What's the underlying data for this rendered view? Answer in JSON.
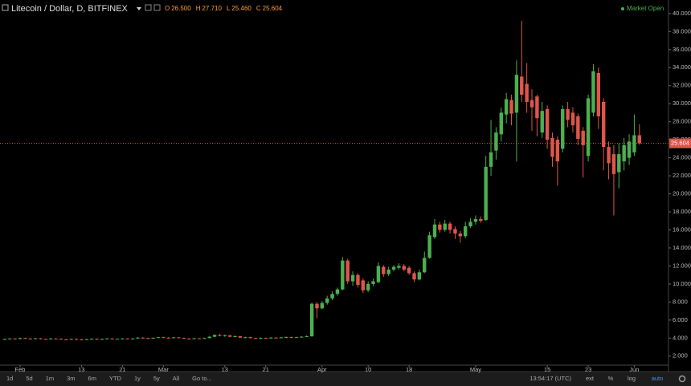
{
  "chart_data": {
    "type": "candlestick",
    "title": "Litecoin / Dollar, D, BITFINEX",
    "ohlc": [
      {
        "key": "O",
        "value": 26.5,
        "label": "26.500"
      },
      {
        "key": "H",
        "value": 27.71,
        "label": "27.710"
      },
      {
        "key": "L",
        "value": 25.46,
        "label": "25.460"
      },
      {
        "key": "C",
        "value": 25.604,
        "label": "25.604"
      }
    ],
    "status": "Market Open",
    "last_price": {
      "value": 25.604,
      "label": "25.604"
    },
    "up_color": "#4caf50",
    "down_color": "#e0554a",
    "categories": [
      null,
      null,
      null,
      "Feb",
      null,
      null,
      null,
      null,
      null,
      null,
      null,
      null,
      null,
      null,
      null,
      "13",
      null,
      null,
      null,
      null,
      null,
      null,
      null,
      "21",
      null,
      null,
      null,
      null,
      null,
      null,
      null,
      "Mar",
      null,
      null,
      null,
      null,
      null,
      null,
      null,
      null,
      null,
      null,
      null,
      "13",
      null,
      null,
      null,
      null,
      null,
      null,
      null,
      "21",
      null,
      null,
      null,
      null,
      null,
      null,
      null,
      null,
      null,
      null,
      "Apr",
      null,
      null,
      null,
      null,
      null,
      null,
      null,
      null,
      "10",
      null,
      null,
      null,
      null,
      null,
      null,
      null,
      "18",
      null,
      null,
      null,
      null,
      null,
      null,
      null,
      null,
      null,
      null,
      null,
      null,
      "May",
      null,
      null,
      null,
      null,
      null,
      null,
      null,
      null,
      null,
      null,
      null,
      null,
      null,
      "15",
      null,
      null,
      null,
      null,
      null,
      null,
      null,
      "23",
      null,
      null,
      null,
      null,
      null,
      null,
      null,
      null,
      "Jun",
      null
    ],
    "open": [
      3.85,
      3.9,
      3.95,
      3.9,
      4.0,
      3.95,
      3.92,
      3.98,
      3.9,
      3.88,
      3.95,
      3.92,
      3.85,
      3.82,
      3.9,
      3.85,
      3.8,
      3.88,
      3.92,
      3.85,
      3.9,
      3.95,
      3.88,
      3.92,
      3.95,
      3.9,
      3.95,
      4.05,
      4.0,
      3.95,
      4.02,
      4.1,
      4.05,
      4.0,
      4.08,
      4.02,
      3.95,
      3.9,
      3.98,
      3.92,
      4.0,
      4.15,
      4.35,
      4.25,
      4.3,
      4.15,
      4.2,
      4.05,
      4.1,
      4.0,
      3.95,
      4.02,
      3.98,
      4.05,
      4.0,
      4.08,
      4.12,
      4.05,
      4.1,
      4.15,
      4.2,
      7.8,
      7.3,
      7.9,
      8.4,
      8.9,
      9.4,
      12.6,
      10.3,
      11.0,
      10.4,
      9.3,
      10.0,
      10.2,
      11.9,
      11.1,
      11.6,
      11.8,
      12.0,
      11.8,
      11.2,
      10.5,
      11.3,
      12.9,
      15.2,
      16.6,
      16.0,
      16.7,
      16.1,
      15.6,
      15.3,
      16.4,
      16.9,
      17.2,
      17.1,
      23.0,
      24.8,
      26.6,
      28.8,
      30.4,
      29.0,
      33.0,
      32.2,
      30.4,
      30.8,
      26.8,
      29.4,
      26.2,
      26.0,
      25.0,
      29.4,
      29.0,
      28.6,
      27.0,
      24.2,
      29.0,
      33.4,
      30.2,
      25.2,
      24.4,
      22.4,
      23.6,
      24.0,
      24.6,
      26.5
    ],
    "high": [
      3.95,
      4.0,
      4.0,
      4.05,
      4.05,
      4.0,
      4.02,
      4.0,
      3.95,
      4.0,
      4.0,
      3.95,
      3.9,
      3.95,
      3.95,
      3.9,
      3.92,
      3.98,
      3.95,
      3.95,
      4.0,
      3.98,
      3.96,
      4.0,
      3.98,
      4.0,
      4.1,
      4.1,
      4.05,
      4.08,
      4.15,
      4.15,
      4.1,
      4.12,
      4.12,
      4.05,
      4.0,
      4.02,
      4.0,
      4.05,
      4.2,
      4.4,
      4.45,
      4.4,
      4.35,
      4.3,
      4.25,
      4.15,
      4.15,
      4.05,
      4.08,
      4.05,
      4.1,
      4.1,
      4.12,
      4.18,
      4.15,
      4.15,
      4.2,
      4.3,
      7.95,
      8.0,
      8.1,
      8.7,
      9.2,
      9.6,
      13.0,
      12.8,
      11.4,
      11.2,
      10.6,
      10.3,
      10.6,
      12.4,
      12.1,
      11.9,
      12.1,
      12.3,
      12.2,
      12.0,
      11.4,
      11.6,
      13.6,
      15.8,
      17.2,
      16.9,
      17.1,
      16.9,
      16.4,
      15.9,
      16.9,
      17.3,
      17.6,
      17.5,
      24.2,
      28.2,
      27.4,
      29.6,
      31.2,
      31.0,
      34.8,
      39.2,
      34.5,
      31.6,
      31.0,
      30.2,
      29.8,
      26.8,
      26.4,
      29.8,
      30.2,
      29.6,
      28.9,
      27.4,
      31.0,
      34.4,
      34.0,
      30.6,
      25.8,
      25.4,
      25.6,
      26.2,
      26.6,
      28.8,
      27.71
    ],
    "low": [
      3.8,
      3.85,
      3.85,
      3.85,
      3.9,
      3.88,
      3.88,
      3.85,
      3.82,
      3.85,
      3.88,
      3.8,
      3.78,
      3.8,
      3.8,
      3.75,
      3.78,
      3.85,
      3.8,
      3.82,
      3.88,
      3.85,
      3.85,
      3.9,
      3.85,
      3.88,
      3.92,
      3.95,
      3.9,
      3.92,
      4.0,
      4.0,
      3.95,
      3.98,
      3.98,
      3.9,
      3.85,
      3.88,
      3.88,
      3.9,
      3.98,
      4.1,
      4.2,
      4.15,
      4.1,
      4.1,
      4.0,
      3.98,
      3.95,
      3.9,
      3.9,
      3.92,
      3.95,
      3.95,
      3.98,
      4.05,
      4.0,
      4.02,
      4.05,
      4.1,
      4.15,
      6.2,
      7.2,
      7.7,
      8.2,
      8.7,
      9.3,
      10.0,
      9.8,
      9.6,
      9.0,
      9.1,
      9.8,
      10.1,
      10.8,
      10.9,
      11.4,
      11.6,
      11.4,
      11.0,
      10.2,
      10.4,
      11.2,
      12.8,
      15.0,
      15.7,
      15.8,
      15.6,
      15.0,
      14.6,
      15.1,
      16.2,
      16.6,
      16.8,
      17.0,
      22.0,
      23.8,
      25.8,
      27.8,
      27.6,
      23.6,
      30.2,
      29.0,
      27.0,
      26.4,
      26.2,
      25.0,
      23.0,
      20.9,
      24.6,
      27.4,
      26.8,
      25.4,
      21.8,
      23.6,
      28.6,
      27.2,
      22.6,
      21.6,
      17.6,
      20.6,
      22.6,
      23.2,
      24.2,
      25.46
    ],
    "close": [
      3.9,
      3.95,
      3.9,
      4.0,
      3.95,
      3.92,
      3.98,
      3.9,
      3.88,
      3.95,
      3.92,
      3.85,
      3.82,
      3.9,
      3.85,
      3.8,
      3.88,
      3.92,
      3.85,
      3.9,
      3.95,
      3.88,
      3.92,
      3.95,
      3.9,
      3.95,
      4.05,
      4.0,
      3.95,
      4.02,
      4.1,
      4.05,
      4.0,
      4.08,
      4.02,
      3.95,
      3.9,
      3.98,
      3.92,
      4.0,
      4.15,
      4.35,
      4.25,
      4.3,
      4.15,
      4.2,
      4.05,
      4.1,
      4.0,
      3.95,
      4.02,
      3.98,
      4.05,
      4.0,
      4.08,
      4.12,
      4.05,
      4.1,
      4.15,
      4.2,
      7.8,
      7.3,
      7.9,
      8.4,
      8.9,
      9.4,
      12.6,
      10.3,
      11.0,
      9.9,
      9.3,
      10.0,
      10.3,
      12.0,
      11.1,
      11.6,
      11.9,
      12.0,
      11.6,
      11.2,
      10.5,
      11.3,
      12.9,
      15.4,
      16.6,
      16.0,
      16.7,
      16.0,
      15.6,
      15.3,
      16.4,
      16.9,
      17.2,
      17.0,
      23.0,
      24.6,
      26.8,
      29.0,
      30.5,
      28.9,
      33.2,
      31.0,
      30.2,
      29.6,
      28.4,
      29.2,
      26.0,
      24.1,
      23.6,
      29.4,
      28.2,
      27.6,
      26.1,
      25.4,
      30.6,
      33.6,
      28.6,
      25.2,
      23.4,
      22.2,
      24.4,
      25.4,
      25.8,
      26.5,
      25.604
    ],
    "ylim": [
      1,
      41.5
    ],
    "yticks": [
      {
        "value": 2,
        "label": "2.000"
      },
      {
        "value": 4,
        "label": "4.000"
      },
      {
        "value": 6,
        "label": "6.000"
      },
      {
        "value": 8,
        "label": "8.000"
      },
      {
        "value": 10,
        "label": "10.000"
      },
      {
        "value": 12,
        "label": "12.000"
      },
      {
        "value": 14,
        "label": "14.000"
      },
      {
        "value": 16,
        "label": "16.000"
      },
      {
        "value": 18,
        "label": "18.000"
      },
      {
        "value": 20,
        "label": "20.000"
      },
      {
        "value": 22,
        "label": "22.000"
      },
      {
        "value": 24,
        "label": "24.000"
      },
      {
        "value": 26,
        "label": "26.000"
      },
      {
        "value": 28,
        "label": "28.000"
      },
      {
        "value": 30,
        "label": "30.000"
      },
      {
        "value": 32,
        "label": "32.000"
      },
      {
        "value": 34,
        "label": "34.000"
      },
      {
        "value": 36,
        "label": "36.000"
      },
      {
        "value": 38,
        "label": "38.000"
      },
      {
        "value": 40,
        "label": "40.000"
      }
    ]
  },
  "toolbar": {
    "ranges": [
      "1d",
      "5d",
      "1m",
      "3m",
      "6m",
      "YTD",
      "1y",
      "5y",
      "All"
    ],
    "goto": "Go to...",
    "clock": "13:54:17 (UTC)",
    "options": [
      "ext",
      "%",
      "log",
      "auto"
    ]
  }
}
